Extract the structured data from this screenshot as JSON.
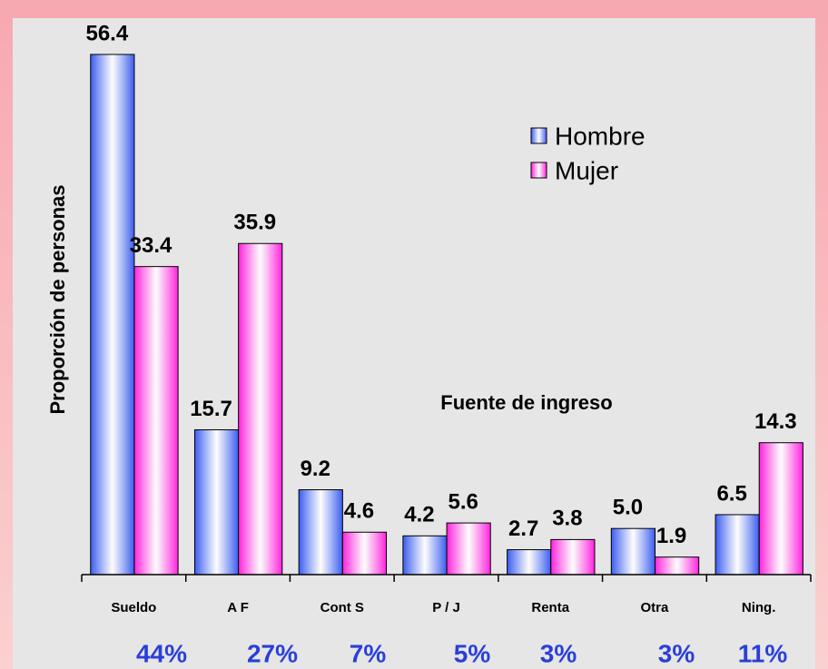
{
  "chart_data": {
    "type": "bar",
    "y_axis_label": "Proporción de personas",
    "annotation": "Fuente de ingreso",
    "categories": [
      "Sueldo",
      "A F",
      "Cont S",
      "P / J",
      "Renta",
      "Otra",
      "Ning."
    ],
    "series": [
      {
        "name": "Hombre",
        "color": "#3a5cf0",
        "values": [
          56.4,
          15.7,
          9.2,
          4.2,
          2.7,
          5.0,
          6.5
        ],
        "value_labels": [
          "56.4",
          "15.7",
          "9.2",
          "4.2",
          "2.7",
          "5.0",
          "6.5"
        ]
      },
      {
        "name": "Mujer",
        "color": "#ff22dd",
        "values": [
          33.4,
          35.9,
          4.6,
          5.6,
          3.8,
          1.9,
          14.3
        ],
        "value_labels": [
          "33.4",
          "35.9",
          "4.6",
          "5.6",
          "3.8",
          "1.9",
          "14.3"
        ]
      }
    ],
    "footer_labels": [
      "44%",
      "27%",
      "7%",
      "5%",
      "3%",
      "3%",
      "11%"
    ],
    "ylim": [
      0,
      60
    ],
    "legend": "upper right"
  }
}
